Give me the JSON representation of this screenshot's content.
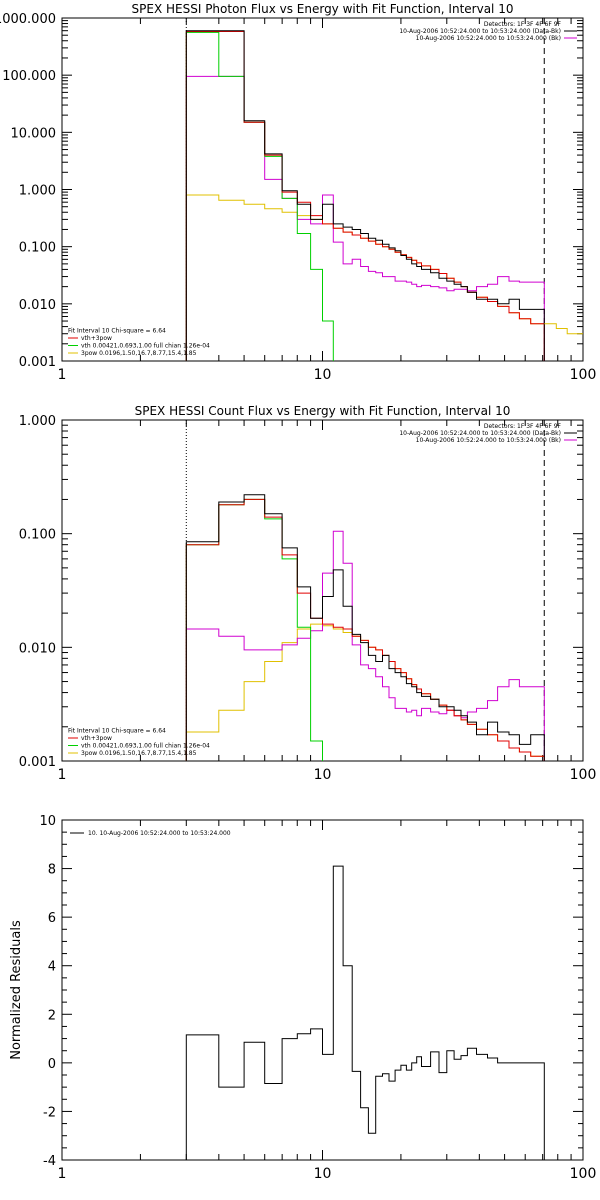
{
  "chart_data": [
    {
      "type": "line",
      "title": "SPEX HESSI Photon Flux vs Energy with Fit Function, Interval 10",
      "xscale": "log",
      "yscale": "log",
      "xlim": [
        1,
        100
      ],
      "ylim": [
        0.001,
        1000
      ],
      "xticks": [
        {
          "v": 1,
          "label": "1"
        },
        {
          "v": 10,
          "label": "10"
        },
        {
          "v": 100,
          "label": "100"
        }
      ],
      "yticks": [
        {
          "v": 0.001,
          "label": "0.001"
        },
        {
          "v": 0.01,
          "label": "0.010"
        },
        {
          "v": 0.1,
          "label": "0.100"
        },
        {
          "v": 1,
          "label": "1.000"
        },
        {
          "v": 10,
          "label": "10.000"
        },
        {
          "v": 100,
          "label": "100.000"
        },
        {
          "v": 1000,
          "label": "1000.000"
        }
      ],
      "vlines": [
        {
          "x": 3,
          "style": "dotted"
        },
        {
          "x": 71,
          "style": "dashed"
        }
      ],
      "legend_topright": [
        "Detectors: 1F 3F 4F 6F 9F",
        "10-Aug-2006 10:52:24.000 to 10:53:24.000 (Data-Bk)",
        "10-Aug-2006 10:52:24.000 to 10:53:24.000 (Bk)"
      ],
      "legend_topright_colors": [
        "",
        "#000000",
        "#d000d0"
      ],
      "legend_bottomleft": [
        "Fit Interval 10   Chi-square = 6.64",
        "vth+3pow",
        "vth 0.00421,0.693,1.00   full chian 1.26e-04",
        "3pow 0.0196,1.50,16.7,8.77,15.4,1.85"
      ],
      "legend_bottomleft_colors": [
        "",
        "#e00000",
        "#00d000",
        "#e0c000"
      ],
      "edges": [
        3,
        4,
        5,
        6,
        7,
        8,
        9,
        10,
        11,
        12,
        13,
        14,
        15,
        16,
        17,
        18,
        19,
        20,
        21,
        22,
        23,
        24,
        26,
        28,
        30,
        32,
        34,
        36,
        39,
        43,
        47,
        52,
        57,
        63,
        71
      ],
      "series": [
        {
          "name": "Data-Bk",
          "color": "#000000",
          "values": [
            600,
            600,
            16,
            4.2,
            0.95,
            0.55,
            0.3,
            0.55,
            0.25,
            0.22,
            0.2,
            0.17,
            0.14,
            0.13,
            0.11,
            0.095,
            0.085,
            0.07,
            0.06,
            0.05,
            0.045,
            0.04,
            0.035,
            0.028,
            0.025,
            0.022,
            0.02,
            0.016,
            0.012,
            0.012,
            0.01,
            0.012,
            0.008,
            0.008
          ]
        },
        {
          "name": "Bk",
          "color": "#d000d0",
          "values": [
            95,
            95,
            15,
            1.5,
            0.7,
            0.3,
            0.25,
            0.8,
            0.12,
            0.05,
            0.06,
            0.045,
            0.037,
            0.035,
            0.03,
            0.03,
            0.025,
            0.025,
            0.024,
            0.022,
            0.02,
            0.021,
            0.02,
            0.019,
            0.017,
            0.018,
            0.018,
            0.017,
            0.02,
            0.022,
            0.03,
            0.025,
            0.024,
            0.024
          ]
        },
        {
          "name": "vth+3pow",
          "color": "#e00000",
          "values": [
            580,
            580,
            15,
            4,
            0.9,
            0.6,
            0.35,
            0.25,
            0.21,
            0.18,
            0.16,
            0.14,
            0.125,
            0.11,
            0.1,
            0.09,
            0.08,
            0.072,
            0.065,
            0.058,
            0.052,
            0.046,
            0.04,
            0.034,
            0.028,
            0.024,
            0.02,
            0.016,
            0.013,
            0.011,
            0.009,
            0.007,
            0.0055,
            0.0045
          ]
        },
        {
          "name": "vth",
          "color": "#00d000",
          "values": [
            560,
            95,
            15,
            3.8,
            0.7,
            0.17,
            0.04,
            0.005,
            0.0008
          ]
        },
        {
          "name": "3pow",
          "color": "#e0c000",
          "values": [
            0.8,
            0.65,
            0.55,
            0.46,
            0.4,
            0.35,
            0.3,
            0.25,
            0.21,
            0.18,
            0.16,
            0.14,
            0.125,
            0.11,
            0.1,
            0.09,
            0.08,
            0.072,
            0.065,
            0.058,
            0.052,
            0.046,
            0.04,
            0.034,
            0.028,
            0.024,
            0.02,
            0.016,
            0.013,
            0.011,
            0.009,
            0.007,
            0.0055,
            0.0045
          ]
        }
      ],
      "extension": {
        "color": "#e0c000",
        "edges": [
          71,
          79,
          87,
          100
        ],
        "values": [
          0.0045,
          0.0037,
          0.003
        ]
      }
    },
    {
      "type": "line",
      "title": "SPEX HESSI Count Flux vs Energy with Fit Function, Interval 10",
      "xscale": "log",
      "yscale": "log",
      "xlim": [
        1,
        100
      ],
      "ylim": [
        0.001,
        1
      ],
      "xticks": [
        {
          "v": 1,
          "label": "1"
        },
        {
          "v": 10,
          "label": "10"
        },
        {
          "v": 100,
          "label": "100"
        }
      ],
      "yticks": [
        {
          "v": 0.001,
          "label": "0.001"
        },
        {
          "v": 0.01,
          "label": "0.010"
        },
        {
          "v": 0.1,
          "label": "0.100"
        },
        {
          "v": 1,
          "label": "1.000"
        }
      ],
      "vlines": [
        {
          "x": 3,
          "style": "dotted"
        },
        {
          "x": 71,
          "style": "dashed"
        }
      ],
      "legend_topright": [
        "Detectors: 1F 3F 4F 6F 9F",
        "10-Aug-2006 10:52:24.000 to 10:53:24.000 (Data-Bk)",
        "10-Aug-2006 10:52:24.000 to 10:53:24.000 (Bk)"
      ],
      "legend_topright_colors": [
        "",
        "#000000",
        "#d000d0"
      ],
      "legend_bottomleft": [
        "Fit Interval 10   Chi-square = 6.64",
        "vth+3pow",
        "vth 0.00421,0.693,1.00   full chian 1.26e-04",
        "3pow 0.0196,1.50,16.7,8.77,15.4,1.85"
      ],
      "legend_bottomleft_colors": [
        "",
        "#e00000",
        "#00d000",
        "#e0c000"
      ],
      "edges": [
        3,
        4,
        5,
        6,
        7,
        8,
        9,
        10,
        11,
        12,
        13,
        14,
        15,
        16,
        17,
        18,
        19,
        20,
        21,
        22,
        23,
        24,
        26,
        28,
        30,
        32,
        34,
        36,
        39,
        43,
        47,
        52,
        57,
        63,
        71
      ],
      "series": [
        {
          "name": "Data-Bk",
          "color": "#000000",
          "values": [
            0.085,
            0.19,
            0.22,
            0.15,
            0.075,
            0.034,
            0.018,
            0.028,
            0.048,
            0.023,
            0.013,
            0.011,
            0.0085,
            0.0075,
            0.0085,
            0.0065,
            0.006,
            0.0055,
            0.0048,
            0.0045,
            0.004,
            0.0037,
            0.0035,
            0.003,
            0.003,
            0.0028,
            0.0025,
            0.0022,
            0.0017,
            0.0022,
            0.0018,
            0.0017,
            0.0014,
            0.0017
          ]
        },
        {
          "name": "Bk",
          "color": "#d000d0",
          "values": [
            0.0145,
            0.0125,
            0.0095,
            0.0095,
            0.0105,
            0.012,
            0.014,
            0.045,
            0.105,
            0.055,
            0.0105,
            0.007,
            0.0065,
            0.0055,
            0.0045,
            0.0036,
            0.0029,
            0.0029,
            0.0027,
            0.0028,
            0.0025,
            0.0029,
            0.0027,
            0.0026,
            0.0028,
            0.0025,
            0.0024,
            0.0027,
            0.0029,
            0.0034,
            0.0045,
            0.0052,
            0.0045,
            0.0045
          ]
        },
        {
          "name": "vth+3pow",
          "color": "#e00000",
          "values": [
            0.08,
            0.18,
            0.2,
            0.14,
            0.065,
            0.03,
            0.018,
            0.016,
            0.015,
            0.0145,
            0.0125,
            0.0115,
            0.01,
            0.0095,
            0.0085,
            0.0075,
            0.0065,
            0.006,
            0.0053,
            0.0047,
            0.0043,
            0.0039,
            0.0035,
            0.0031,
            0.0028,
            0.0025,
            0.0023,
            0.0021,
            0.0019,
            0.0017,
            0.0015,
            0.0013,
            0.0012,
            0.0011
          ]
        },
        {
          "name": "vth",
          "color": "#00d000",
          "values": [
            0.08,
            0.18,
            0.2,
            0.135,
            0.06,
            0.015,
            0.0015,
            0.0003
          ]
        },
        {
          "name": "3pow",
          "color": "#e0c000",
          "values": [
            0.0018,
            0.0028,
            0.005,
            0.0075,
            0.011,
            0.0145,
            0.016,
            0.0155,
            0.0145,
            0.0135,
            0.0125,
            0.0115,
            0.01,
            0.0095,
            0.0085,
            0.0075,
            0.0065,
            0.006,
            0.0053,
            0.0047,
            0.0043,
            0.0039,
            0.0035,
            0.0031,
            0.0028,
            0.0025,
            0.0023,
            0.0021,
            0.0019,
            0.0017,
            0.0015,
            0.0013,
            0.0012,
            0.0011
          ]
        }
      ]
    },
    {
      "type": "line",
      "title": "",
      "xscale": "log",
      "yscale": "linear",
      "xlim": [
        1,
        100
      ],
      "ylim": [
        -4,
        10
      ],
      "ylabel": "Normalized Residuals",
      "xticks": [
        {
          "v": 1,
          "label": "1"
        },
        {
          "v": 10,
          "label": "10"
        },
        {
          "v": 100,
          "label": "100"
        }
      ],
      "yticks": [
        {
          "v": -4,
          "label": "-4"
        },
        {
          "v": -2,
          "label": "-2"
        },
        {
          "v": 0,
          "label": "0"
        },
        {
          "v": 2,
          "label": "2"
        },
        {
          "v": 4,
          "label": "4"
        },
        {
          "v": 6,
          "label": "6"
        },
        {
          "v": 8,
          "label": "8"
        },
        {
          "v": 10,
          "label": "10"
        }
      ],
      "legend_topleft": [
        "10. 10-Aug-2006 10:52:24.000 to 10:53:24.000"
      ],
      "edges": [
        3,
        4,
        5,
        6,
        7,
        8,
        9,
        10,
        11,
        12,
        13,
        14,
        15,
        16,
        17,
        18,
        19,
        20,
        21,
        22,
        23,
        24,
        26,
        28,
        30,
        32,
        34,
        36,
        39,
        43,
        47,
        52,
        57,
        63,
        71
      ],
      "series": [
        {
          "name": "10. 10-Aug-2006 10:52:24.000 to 10:53:24.000",
          "color": "#000000",
          "values": [
            1.15,
            -1.0,
            0.85,
            -0.85,
            1.0,
            1.2,
            1.4,
            0.35,
            8.1,
            4.0,
            -0.35,
            -1.85,
            -2.9,
            -0.55,
            -0.45,
            -0.75,
            -0.3,
            -0.1,
            -0.3,
            0.0,
            0.25,
            -0.15,
            0.45,
            -0.4,
            0.5,
            0.15,
            0.3,
            0.6,
            0.35,
            0.2,
            0.0,
            0.0,
            0.0,
            0.0
          ]
        }
      ]
    }
  ]
}
